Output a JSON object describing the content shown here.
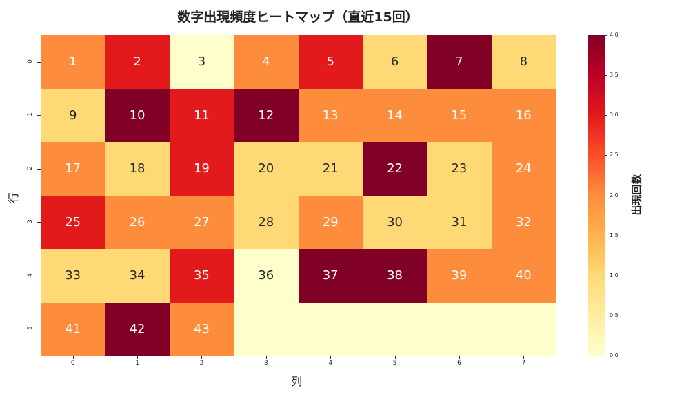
{
  "chart_data": {
    "type": "heatmap",
    "title": "数字出現頻度ヒートマップ（直近15回）",
    "xlabel": "列",
    "ylabel": "行",
    "x_ticks": [
      "0",
      "1",
      "2",
      "3",
      "4",
      "5",
      "6",
      "7"
    ],
    "y_ticks": [
      "0",
      "1",
      "2",
      "3",
      "4",
      "5"
    ],
    "colormap": "YlOrRd",
    "colorbar": {
      "label": "出現回数",
      "range": [
        0,
        4
      ],
      "ticks": [
        "0.0",
        "0.5",
        "1.0",
        "1.5",
        "2.0",
        "2.5",
        "3.0",
        "3.5",
        "4.0"
      ]
    },
    "annotations": [
      [
        "1",
        "2",
        "3",
        "4",
        "5",
        "6",
        "7",
        "8"
      ],
      [
        "9",
        "10",
        "11",
        "12",
        "13",
        "14",
        "15",
        "16"
      ],
      [
        "17",
        "18",
        "19",
        "20",
        "21",
        "22",
        "23",
        "24"
      ],
      [
        "25",
        "26",
        "27",
        "28",
        "29",
        "30",
        "31",
        "32"
      ],
      [
        "33",
        "34",
        "35",
        "36",
        "37",
        "38",
        "39",
        "40"
      ],
      [
        "41",
        "42",
        "43",
        "",
        "",
        "",
        "",
        ""
      ]
    ],
    "values": [
      [
        2,
        3,
        0,
        2,
        3,
        1,
        4,
        1
      ],
      [
        1,
        4,
        3,
        4,
        2,
        2,
        2,
        2
      ],
      [
        2,
        1,
        3,
        1,
        1,
        4,
        1,
        2
      ],
      [
        3,
        2,
        2,
        1,
        2,
        1,
        1,
        2
      ],
      [
        1,
        1,
        3,
        0,
        4,
        4,
        2,
        2
      ],
      [
        2,
        4,
        2,
        0,
        0,
        0,
        0,
        0
      ]
    ],
    "vmin": 0,
    "vmax": 4
  },
  "palette": [
    "#ffffcc",
    "#fed976",
    "#fd8d3c",
    "#e31a1c",
    "#800026"
  ]
}
